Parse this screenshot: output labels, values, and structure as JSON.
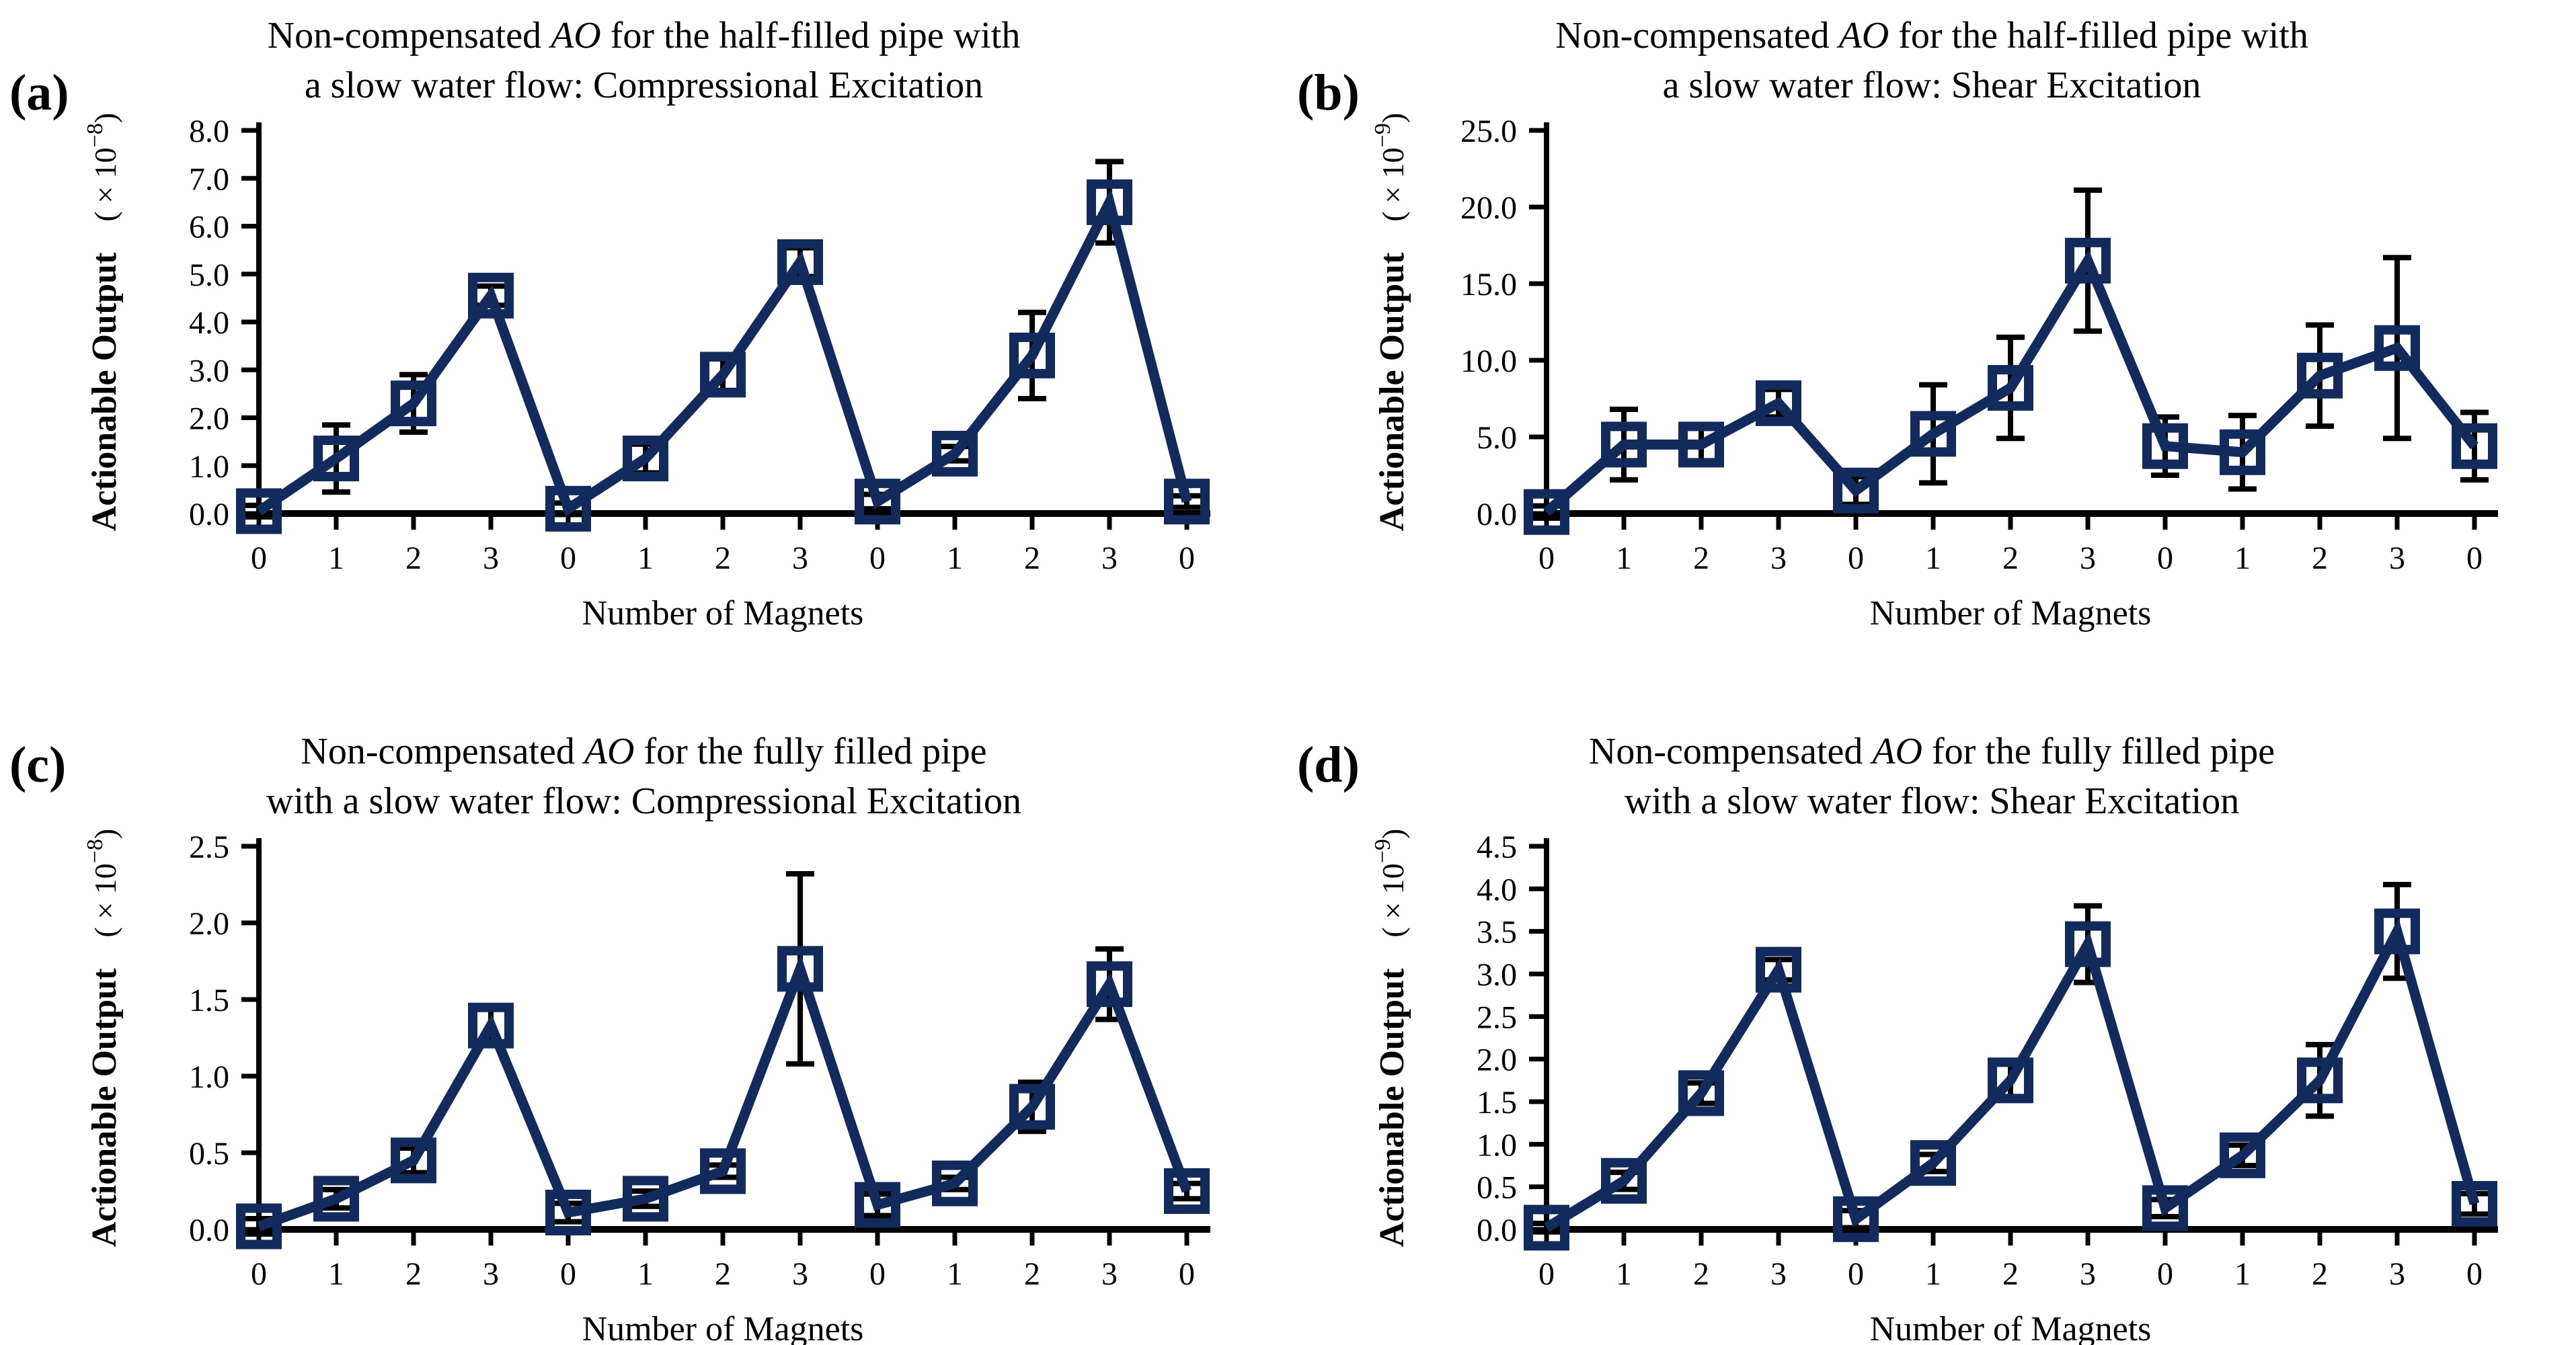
{
  "figure": {
    "background": "#ffffff",
    "line_color": "#122a5c",
    "axis_color": "#000000",
    "error_color": "#000000",
    "marker": "open-square"
  },
  "chart_data": [
    {
      "panel_label": "(a)",
      "type": "line",
      "title": {
        "pre": "Non-compensated ",
        "italic": "AO",
        "post": " for the half-filled pipe with",
        "line2": "a slow water flow: Compressional Excitation"
      },
      "xlabel": "Number of Magnets",
      "ylabel": "Actionable Output",
      "y_scale": {
        "prefix": "( × 10",
        "power": "−8",
        "suffix": ")"
      },
      "categories": [
        "0",
        "1",
        "2",
        "3",
        "0",
        "1",
        "2",
        "3",
        "0",
        "1",
        "2",
        "3",
        "0"
      ],
      "values": [
        0.05,
        1.15,
        2.3,
        4.55,
        0.1,
        1.15,
        2.9,
        5.25,
        0.25,
        1.25,
        3.3,
        6.5,
        0.25
      ],
      "errors": [
        0.12,
        0.7,
        0.6,
        0.2,
        0.12,
        0.3,
        0.33,
        0.3,
        0.15,
        0.15,
        0.9,
        0.85,
        0.12
      ],
      "ylim": [
        0,
        8
      ],
      "ytick_labels": [
        "0.0",
        "1.0",
        "2.0",
        "3.0",
        "4.0",
        "5.0",
        "6.0",
        "7.0",
        "8.0"
      ],
      "grid": false,
      "legend": "none"
    },
    {
      "panel_label": "(b)",
      "type": "line",
      "title": {
        "pre": "Non-compensated ",
        "italic": "AO",
        "post": " for the half-filled pipe with",
        "line2": "a slow water flow: Shear Excitation"
      },
      "xlabel": "Number of Magnets",
      "ylabel": "Actionable Output",
      "y_scale": {
        "prefix": "( × 10",
        "power": "−9",
        "suffix": ")"
      },
      "categories": [
        "0",
        "1",
        "2",
        "3",
        "0",
        "1",
        "2",
        "3",
        "0",
        "1",
        "2",
        "3",
        "0"
      ],
      "values": [
        0.1,
        4.5,
        4.5,
        7.2,
        1.5,
        5.2,
        8.2,
        16.5,
        4.4,
        4.0,
        9.0,
        10.8,
        4.4
      ],
      "errors": [
        0.4,
        2.3,
        1.2,
        0.9,
        0.9,
        3.2,
        3.3,
        4.6,
        1.9,
        2.4,
        3.3,
        5.9,
        2.2
      ],
      "ylim": [
        0,
        25
      ],
      "ytick_labels": [
        "0.0",
        "5.0",
        "10.0",
        "15.0",
        "20.0",
        "25.0"
      ],
      "grid": false,
      "legend": "none"
    },
    {
      "panel_label": "(c)",
      "type": "line",
      "title": {
        "pre": "Non-compensated ",
        "italic": "AO",
        "post": " for the fully filled pipe",
        "line2": "with a slow water flow: Compressional Excitation"
      },
      "xlabel": "Number of Magnets",
      "ylabel": "Actionable Output",
      "y_scale": {
        "prefix": "( × 10",
        "power": "−8",
        "suffix": ")"
      },
      "categories": [
        "0",
        "1",
        "2",
        "3",
        "0",
        "1",
        "2",
        "3",
        "0",
        "1",
        "2",
        "3",
        "0"
      ],
      "values": [
        0.02,
        0.2,
        0.45,
        1.33,
        0.11,
        0.2,
        0.38,
        1.7,
        0.16,
        0.3,
        0.8,
        1.6,
        0.25
      ],
      "errors": [
        0.05,
        0.06,
        0.08,
        0.12,
        0.06,
        0.05,
        0.04,
        0.62,
        0.07,
        0.04,
        0.16,
        0.23,
        0.05
      ],
      "ylim": [
        0,
        2.5
      ],
      "ytick_labels": [
        "0.0",
        "0.5",
        "1.0",
        "1.5",
        "2.0",
        "2.5"
      ],
      "grid": false,
      "legend": "none"
    },
    {
      "panel_label": "(d)",
      "type": "line",
      "title": {
        "pre": "Non-compensated ",
        "italic": "AO",
        "post": " for the fully filled pipe",
        "line2": "with a slow water flow: Shear Excitation"
      },
      "xlabel": "Number of Magnets",
      "ylabel": "Actionable Output",
      "y_scale": {
        "prefix": "( × 10",
        "power": "−9",
        "suffix": ")"
      },
      "categories": [
        "0",
        "1",
        "2",
        "3",
        "0",
        "1",
        "2",
        "3",
        "0",
        "1",
        "2",
        "3",
        "0"
      ],
      "values": [
        0.02,
        0.57,
        1.6,
        3.05,
        0.12,
        0.78,
        1.75,
        3.35,
        0.25,
        0.87,
        1.75,
        3.5,
        0.3
      ],
      "errors": [
        0.05,
        0.1,
        0.12,
        0.12,
        0.1,
        0.1,
        0.2,
        0.45,
        0.1,
        0.12,
        0.42,
        0.55,
        0.12
      ],
      "ylim": [
        0,
        4.5
      ],
      "ytick_labels": [
        "0.0",
        "0.5",
        "1.0",
        "1.5",
        "2.0",
        "2.5",
        "3.0",
        "3.5",
        "4.0",
        "4.5"
      ],
      "grid": false,
      "legend": "none"
    }
  ]
}
